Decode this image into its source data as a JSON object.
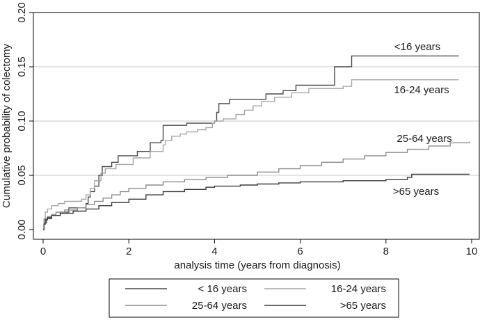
{
  "chart_data": {
    "type": "line",
    "step": true,
    "xlabel": "analysis time (years from diagnosis)",
    "ylabel": "Cumulative probability of colectomy",
    "xlim": [
      0,
      10
    ],
    "ylim": [
      0,
      0.2
    ],
    "xticks": [
      0,
      2,
      4,
      6,
      8,
      10
    ],
    "xtick_labels": [
      "0",
      "2",
      "4",
      "6",
      "8",
      "10"
    ],
    "yticks": [
      0,
      0.05,
      0.1,
      0.15,
      0.2
    ],
    "ytick_labels": [
      "0.00",
      "0.05",
      "0.10",
      "0.15",
      "0.20"
    ],
    "grid": "horizontal",
    "legend_position": "bottom",
    "legend_columns": 2,
    "series": [
      {
        "name": "< 16 years",
        "label": "<16 years",
        "color": "#4a4a4a",
        "points": [
          [
            0,
            0
          ],
          [
            0.02,
            0.006
          ],
          [
            0.08,
            0.01
          ],
          [
            0.2,
            0.013
          ],
          [
            0.4,
            0.016
          ],
          [
            0.6,
            0.02
          ],
          [
            1.0,
            0.024
          ],
          [
            1.05,
            0.03
          ],
          [
            1.1,
            0.035
          ],
          [
            1.2,
            0.04
          ],
          [
            1.3,
            0.05
          ],
          [
            1.38,
            0.058
          ],
          [
            1.6,
            0.062
          ],
          [
            1.75,
            0.068
          ],
          [
            2.2,
            0.072
          ],
          [
            2.5,
            0.08
          ],
          [
            2.75,
            0.082
          ],
          [
            2.8,
            0.096
          ],
          [
            3.3,
            0.096
          ],
          [
            3.35,
            0.098
          ],
          [
            4.0,
            0.1
          ],
          [
            4.05,
            0.108
          ],
          [
            4.1,
            0.116
          ],
          [
            4.35,
            0.12
          ],
          [
            5.2,
            0.125
          ],
          [
            5.6,
            0.128
          ],
          [
            5.9,
            0.133
          ],
          [
            6.8,
            0.15
          ],
          [
            7.2,
            0.16
          ],
          [
            9.7,
            0.16
          ]
        ]
      },
      {
        "name": "16-24 years",
        "label": "16-24 years",
        "color": "#a6a6a6",
        "points": [
          [
            0,
            0
          ],
          [
            0.02,
            0.01
          ],
          [
            0.05,
            0.016
          ],
          [
            0.1,
            0.019
          ],
          [
            0.2,
            0.022
          ],
          [
            0.35,
            0.024
          ],
          [
            0.5,
            0.026
          ],
          [
            0.9,
            0.028
          ],
          [
            1.0,
            0.032
          ],
          [
            1.1,
            0.038
          ],
          [
            1.2,
            0.045
          ],
          [
            1.35,
            0.052
          ],
          [
            1.45,
            0.056
          ],
          [
            1.7,
            0.06
          ],
          [
            2.1,
            0.066
          ],
          [
            2.5,
            0.072
          ],
          [
            2.8,
            0.078
          ],
          [
            2.85,
            0.082
          ],
          [
            3.0,
            0.086
          ],
          [
            3.2,
            0.088
          ],
          [
            3.35,
            0.09
          ],
          [
            3.6,
            0.092
          ],
          [
            3.8,
            0.094
          ],
          [
            3.95,
            0.098
          ],
          [
            4.0,
            0.1
          ],
          [
            4.2,
            0.102
          ],
          [
            4.5,
            0.106
          ],
          [
            4.7,
            0.11
          ],
          [
            4.9,
            0.114
          ],
          [
            5.1,
            0.118
          ],
          [
            5.4,
            0.122
          ],
          [
            5.8,
            0.126
          ],
          [
            6.2,
            0.13
          ],
          [
            7.0,
            0.132
          ],
          [
            7.2,
            0.138
          ],
          [
            9.7,
            0.138
          ]
        ]
      },
      {
        "name": "25-64 years",
        "label": "25-64 years",
        "color": "#8c8c8c",
        "points": [
          [
            0,
            0
          ],
          [
            0.02,
            0.006
          ],
          [
            0.05,
            0.01
          ],
          [
            0.1,
            0.012
          ],
          [
            0.2,
            0.014
          ],
          [
            0.3,
            0.016
          ],
          [
            0.5,
            0.018
          ],
          [
            0.8,
            0.02
          ],
          [
            1.0,
            0.023
          ],
          [
            1.2,
            0.026
          ],
          [
            1.4,
            0.029
          ],
          [
            1.6,
            0.032
          ],
          [
            1.8,
            0.035
          ],
          [
            2.0,
            0.038
          ],
          [
            2.4,
            0.041
          ],
          [
            2.8,
            0.044
          ],
          [
            3.3,
            0.046
          ],
          [
            3.8,
            0.048
          ],
          [
            4.3,
            0.05
          ],
          [
            5.0,
            0.053
          ],
          [
            5.5,
            0.056
          ],
          [
            6.0,
            0.059
          ],
          [
            6.5,
            0.062
          ],
          [
            7.0,
            0.065
          ],
          [
            7.5,
            0.068
          ],
          [
            8.0,
            0.071
          ],
          [
            8.5,
            0.074
          ],
          [
            9.0,
            0.077
          ],
          [
            9.5,
            0.08
          ],
          [
            9.95,
            0.081
          ]
        ]
      },
      {
        "name": ">65 years",
        "label": ">65 years",
        "color": "#3a3a3a",
        "points": [
          [
            0,
            0
          ],
          [
            0.02,
            0.005
          ],
          [
            0.05,
            0.009
          ],
          [
            0.1,
            0.011
          ],
          [
            0.2,
            0.013
          ],
          [
            0.4,
            0.015
          ],
          [
            0.7,
            0.017
          ],
          [
            1.0,
            0.019
          ],
          [
            1.3,
            0.022
          ],
          [
            1.6,
            0.025
          ],
          [
            2.0,
            0.028
          ],
          [
            2.4,
            0.032
          ],
          [
            2.8,
            0.035
          ],
          [
            3.3,
            0.037
          ],
          [
            3.8,
            0.039
          ],
          [
            4.0,
            0.04
          ],
          [
            4.6,
            0.041
          ],
          [
            5.0,
            0.042
          ],
          [
            5.5,
            0.043
          ],
          [
            6.0,
            0.044
          ],
          [
            7.0,
            0.045
          ],
          [
            8.0,
            0.046
          ],
          [
            8.5,
            0.048
          ],
          [
            8.6,
            0.051
          ],
          [
            9.95,
            0.051
          ]
        ]
      }
    ]
  }
}
